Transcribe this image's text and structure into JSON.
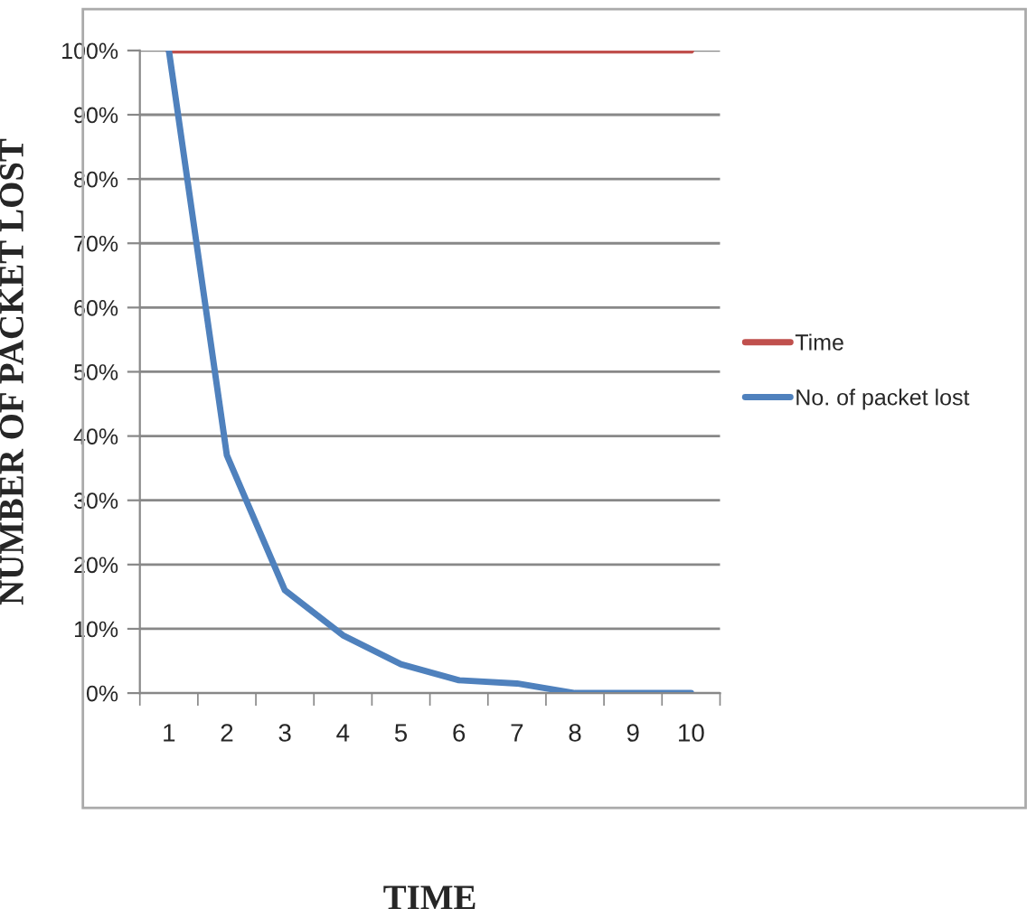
{
  "chart_data": {
    "type": "line",
    "xlabel": "TIME",
    "ylabel": "NUMBER OF PACKET LOST",
    "categories": [
      "1",
      "2",
      "3",
      "4",
      "5",
      "6",
      "7",
      "8",
      "9",
      "10"
    ],
    "series": [
      {
        "name": "Time",
        "color": "#c0504d",
        "values": [
          100,
          100,
          100,
          100,
          100,
          100,
          100,
          100,
          100,
          100
        ]
      },
      {
        "name": "No. of packet lost",
        "color": "#4f81bd",
        "values": [
          100,
          37,
          16,
          9,
          4.5,
          2,
          1.5,
          0,
          0,
          0
        ]
      }
    ],
    "ylim": [
      0,
      100
    ],
    "yticks": [
      {
        "value": 0,
        "label": "0%"
      },
      {
        "value": 10,
        "label": "10%"
      },
      {
        "value": 20,
        "label": "20%"
      },
      {
        "value": 30,
        "label": "30%"
      },
      {
        "value": 40,
        "label": "40%"
      },
      {
        "value": 50,
        "label": "50%"
      },
      {
        "value": 60,
        "label": "60%"
      },
      {
        "value": 70,
        "label": "70%"
      },
      {
        "value": 80,
        "label": "80%"
      },
      {
        "value": 90,
        "label": "90%"
      },
      {
        "value": 100,
        "label": "100%"
      }
    ],
    "grid": "y",
    "legend": "right",
    "marker": "none",
    "line_style": "solid"
  }
}
